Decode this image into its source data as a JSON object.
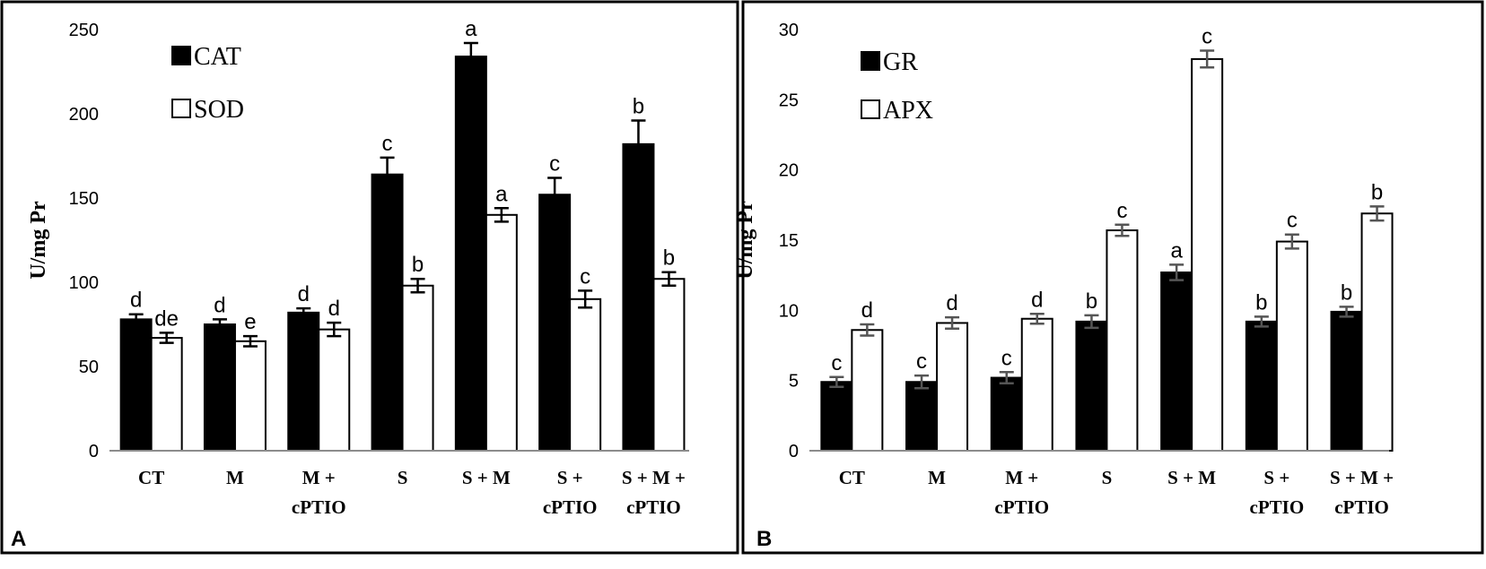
{
  "chart_data": [
    {
      "panel": "A",
      "type": "bar",
      "categories": [
        [
          "CT"
        ],
        [
          "M"
        ],
        [
          "M +",
          "cPTIO"
        ],
        [
          "S"
        ],
        [
          "S + M"
        ],
        [
          "S +",
          "cPTIO"
        ],
        [
          "S + M +",
          "cPTIO"
        ]
      ],
      "ylabel": "U/mg Pr",
      "ylim": [
        0,
        250
      ],
      "yticks": [
        0,
        50,
        100,
        150,
        200,
        250
      ],
      "grid": false,
      "legend_position": "top-left",
      "series": [
        {
          "name": "CAT",
          "fill": "#000000",
          "values": [
            78,
            75,
            82,
            164,
            234,
            152,
            182
          ],
          "errors": [
            3,
            3,
            2.5,
            10,
            8,
            10,
            14
          ],
          "letters": [
            "d",
            "d",
            "d",
            "c",
            "a",
            "c",
            "b"
          ]
        },
        {
          "name": "SOD",
          "fill": "#ffffff",
          "values": [
            67,
            65,
            72,
            98,
            140,
            90,
            102
          ],
          "errors": [
            3,
            3,
            4,
            4,
            4,
            5,
            4
          ],
          "letters": [
            "de",
            "e",
            "d",
            "b",
            "a",
            "c",
            "b"
          ]
        }
      ],
      "error_bar_color": "#000000"
    },
    {
      "panel": "B",
      "type": "bar",
      "categories": [
        [
          "CT"
        ],
        [
          "M"
        ],
        [
          "M +",
          "cPTIO"
        ],
        [
          "S"
        ],
        [
          "S + M"
        ],
        [
          "S +",
          "cPTIO"
        ],
        [
          "S + M +",
          "cPTIO"
        ]
      ],
      "ylabel": "U/mg Pr",
      "ylim": [
        0,
        30
      ],
      "yticks": [
        0,
        5,
        10,
        15,
        20,
        25,
        30
      ],
      "grid": false,
      "legend_position": "top-left",
      "series": [
        {
          "name": "GR",
          "fill": "#000000",
          "values": [
            4.9,
            4.9,
            5.2,
            9.2,
            12.7,
            9.2,
            9.9
          ],
          "errors": [
            0.35,
            0.45,
            0.4,
            0.45,
            0.55,
            0.35,
            0.35
          ],
          "letters": [
            "c",
            "c",
            "c",
            "b",
            "a",
            "b",
            "b"
          ]
        },
        {
          "name": "APX",
          "fill": "#ffffff",
          "values": [
            8.6,
            9.1,
            9.4,
            15.7,
            27.9,
            14.9,
            16.9
          ],
          "errors": [
            0.4,
            0.4,
            0.35,
            0.4,
            0.6,
            0.5,
            0.5
          ],
          "letters": [
            "d",
            "d",
            "d",
            "c",
            "c",
            "c",
            "b"
          ]
        }
      ],
      "error_bar_color": "#555555"
    }
  ]
}
